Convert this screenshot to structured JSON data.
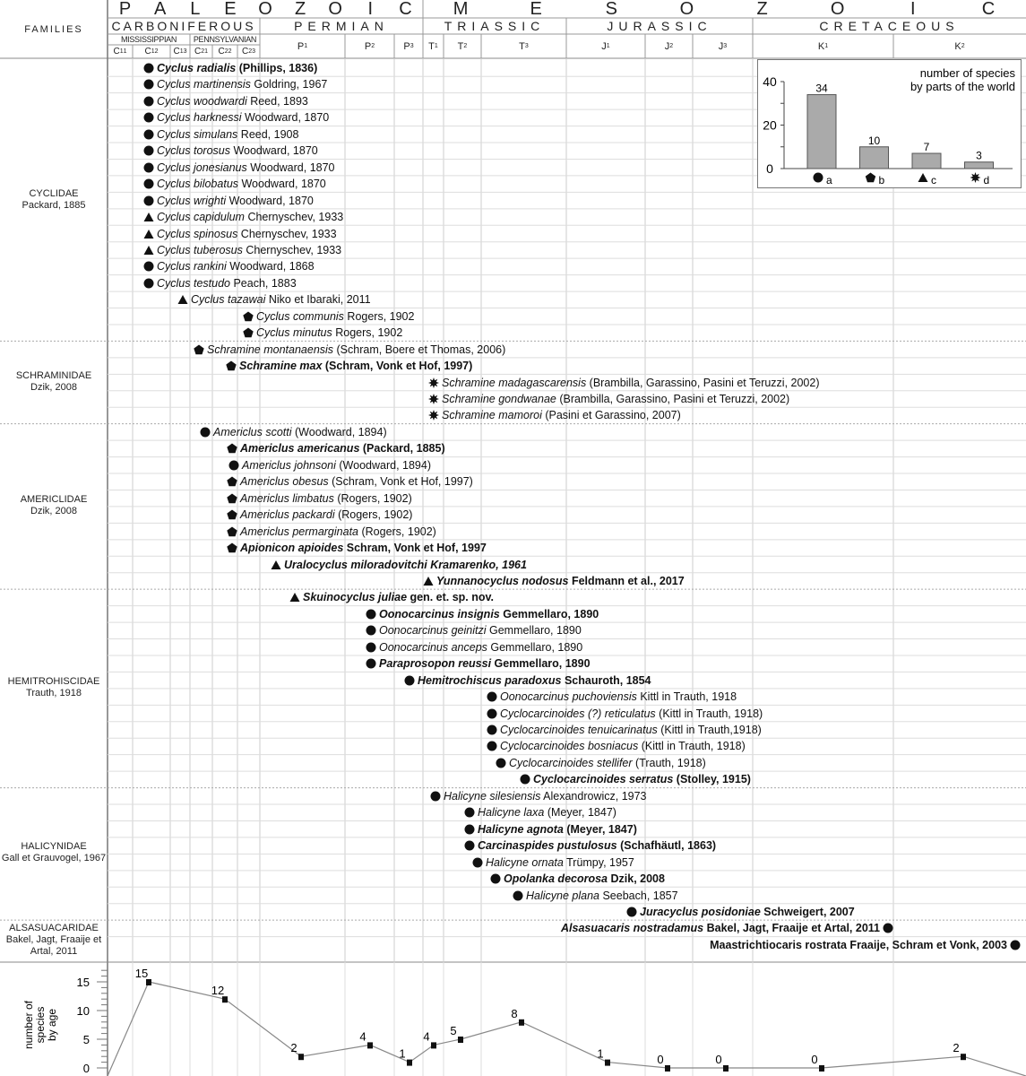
{
  "header": {
    "families_label": "FAMILIES",
    "eras": [
      {
        "label": "P A L E O Z O I C",
        "letters": [
          "P",
          "A",
          "L",
          "E",
          "O",
          "Z",
          "O",
          "I",
          "C"
        ]
      },
      {
        "label": "M E S O Z O I C",
        "letters": [
          "M",
          "E",
          "S",
          "O",
          "Z",
          "O",
          "I",
          "C"
        ]
      }
    ],
    "periods": [
      "CARBONIFEROUS",
      "PERMIAN",
      "TRIASSIC",
      "JURASSIC",
      "CRETACEOUS"
    ],
    "epochs": [
      "MISSISSIPPIAN",
      "PENNSYLVANIAN"
    ],
    "subdivisions": [
      {
        "base": "C",
        "sub": "1",
        "sup": "1"
      },
      {
        "base": "C",
        "sub": "1",
        "sup": "2"
      },
      {
        "base": "C",
        "sub": "1",
        "sup": "3"
      },
      {
        "base": "C",
        "sub": "2",
        "sup": "1"
      },
      {
        "base": "C",
        "sub": "2",
        "sup": "2"
      },
      {
        "base": "C",
        "sub": "2",
        "sup": "3"
      },
      {
        "base": "P",
        "sub": "1",
        "sup": ""
      },
      {
        "base": "P",
        "sub": "2",
        "sup": ""
      },
      {
        "base": "P",
        "sub": "3",
        "sup": ""
      },
      {
        "base": "T",
        "sub": "1",
        "sup": ""
      },
      {
        "base": "T",
        "sub": "2",
        "sup": ""
      },
      {
        "base": "T",
        "sub": "3",
        "sup": ""
      },
      {
        "base": "J",
        "sub": "1",
        "sup": ""
      },
      {
        "base": "J",
        "sub": "2",
        "sup": ""
      },
      {
        "base": "J",
        "sub": "3",
        "sup": ""
      },
      {
        "base": "K",
        "sub": "1",
        "sup": ""
      },
      {
        "base": "K",
        "sub": "2",
        "sup": ""
      }
    ]
  },
  "families": [
    {
      "name": "CYCLIDAE",
      "author": "Packard, 1885"
    },
    {
      "name": "SCHRAMINIDAE",
      "author": "Dzik, 2008"
    },
    {
      "name": "AMERICLIDAE",
      "author": "Dzik, 2008"
    },
    {
      "name": "HEMITROHISCIDAE",
      "author": "Trauth, 1918"
    },
    {
      "name": "HALICYNIDAE",
      "author": "Gall et Grauvogel, 1967"
    },
    {
      "name": "ALSASUACARIDAE",
      "author": "Bakel, Jagt, Fraaije et Artal, 2011"
    }
  ],
  "species": [
    {
      "name": "Cyclus radialis",
      "author": " (Phillips, 1836)",
      "symbol": "circle",
      "bold": true
    },
    {
      "name": "Cyclus martinensis",
      "author": " Goldring, 1967",
      "symbol": "circle",
      "bold": false
    },
    {
      "name": "Cyclus woodwardi",
      "author": " Reed, 1893",
      "symbol": "circle",
      "bold": false
    },
    {
      "name": "Cyclus harknessi",
      "author": " Woodward, 1870",
      "symbol": "circle",
      "bold": false
    },
    {
      "name": "Cyclus simulans",
      "author": " Reed, 1908",
      "symbol": "circle",
      "bold": false
    },
    {
      "name": "Cyclus torosus",
      "author": " Woodward, 1870",
      "symbol": "circle",
      "bold": false
    },
    {
      "name": "Cyclus jonesianus",
      "author": " Woodward, 1870",
      "symbol": "circle",
      "bold": false
    },
    {
      "name": "Cyclus bilobatus",
      "author": " Woodward, 1870",
      "symbol": "circle",
      "bold": false
    },
    {
      "name": "Cyclus wrighti",
      "author": " Woodward, 1870",
      "symbol": "circle",
      "bold": false
    },
    {
      "name": "Cyclus capidulum",
      "author": " Chernyschev, 1933",
      "symbol": "triangle",
      "bold": false
    },
    {
      "name": "Cyclus spinosus",
      "author": " Chernyschev, 1933",
      "symbol": "triangle",
      "bold": false
    },
    {
      "name": "Cyclus tuberosus",
      "author": " Chernyschev, 1933",
      "symbol": "triangle",
      "bold": false
    },
    {
      "name": "Cyclus rankini",
      "author": " Woodward, 1868",
      "symbol": "circle",
      "bold": false
    },
    {
      "name": "Cyclus testudo",
      "author": " Peach, 1883",
      "symbol": "circle",
      "bold": false
    },
    {
      "name": "Cyclus tazawai",
      "author": " Niko et Ibaraki, 2011",
      "symbol": "triangle",
      "bold": false
    },
    {
      "name": "Cyclus communis",
      "author": " Rogers, 1902",
      "symbol": "pentagon",
      "bold": false
    },
    {
      "name": "Cyclus minutus",
      "author": " Rogers, 1902",
      "symbol": "pentagon",
      "bold": false
    },
    {
      "name": "Schramine montanaensis",
      "author": " (Schram, Boere et Thomas, 2006)",
      "symbol": "pentagon",
      "bold": false
    },
    {
      "name": "Schramine max",
      "author": " (Schram, Vonk et Hof, 1997)",
      "symbol": "pentagon",
      "bold": true
    },
    {
      "name": "Schramine madagascarensis",
      "author": " (Brambilla, Garassino, Pasini et Teruzzi, 2002)",
      "symbol": "star",
      "bold": false
    },
    {
      "name": "Schramine gondwanae",
      "author": " (Brambilla, Garassino, Pasini et Teruzzi, 2002)",
      "symbol": "star",
      "bold": false
    },
    {
      "name": "Schramine mamoroi",
      "author": " (Pasini et Garassino, 2007)",
      "symbol": "star",
      "bold": false
    },
    {
      "name": "Americlus scotti",
      "author": " (Woodward, 1894)",
      "symbol": "circle",
      "bold": false
    },
    {
      "name": "Americlus americanus",
      "author": " (Packard, 1885)",
      "symbol": "pentagon",
      "bold": true
    },
    {
      "name": "Americlus johnsoni",
      "author": " (Woodward, 1894)",
      "symbol": "circle",
      "bold": false
    },
    {
      "name": "Americlus obesus",
      "author": " (Schram, Vonk et Hof, 1997)",
      "symbol": "pentagon",
      "bold": false
    },
    {
      "name": "Americlus limbatus",
      "author": " (Rogers, 1902)",
      "symbol": "pentagon",
      "bold": false
    },
    {
      "name": "Americlus packardi",
      "author": " (Rogers, 1902)",
      "symbol": "pentagon",
      "bold": false
    },
    {
      "name": "Americlus permarginata",
      "author": " (Rogers, 1902)",
      "symbol": "pentagon",
      "bold": false
    },
    {
      "name": "Apionicon apioides",
      "author": " Schram, Vonk et Hof, 1997",
      "symbol": "pentagon",
      "bold": true
    },
    {
      "name": "Uralocyclus miloradovitchi Kramarenko, 1961",
      "author": "",
      "symbol": "triangle",
      "bold": true
    },
    {
      "name": "Yunnanocyclus nodosus",
      "author": " Feldmann et al., 2017",
      "symbol": "triangle",
      "bold": true
    },
    {
      "name": "Skuinocyclus juliae",
      "author": " gen. et. sp. nov.",
      "symbol": "triangle",
      "bold": true
    },
    {
      "name": "Oonocarcinus insignis",
      "author": " Gemmellaro, 1890",
      "symbol": "circle",
      "bold": true
    },
    {
      "name": "Oonocarcinus geinitzi",
      "author": " Gemmellaro, 1890",
      "symbol": "circle",
      "bold": false
    },
    {
      "name": "Oonocarcinus anceps",
      "author": " Gemmellaro, 1890",
      "symbol": "circle",
      "bold": false
    },
    {
      "name": "Paraprosopon reussi",
      "author": " Gemmellaro, 1890",
      "symbol": "circle",
      "bold": true
    },
    {
      "name": "Hemitrochiscus paradoxus",
      "author": " Schauroth, 1854",
      "symbol": "circle",
      "bold": true
    },
    {
      "name": "Oonocarcinus puchoviensis",
      "author": " Kittl in Trauth, 1918",
      "symbol": "circle",
      "bold": false
    },
    {
      "name": "Cyclocarcinoides (?) reticulatus",
      "author": " (Kittl in Trauth, 1918)",
      "symbol": "circle",
      "bold": false
    },
    {
      "name": "Cyclocarcinoides tenuicarinatus",
      "author": " (Kittl in Trauth,1918)",
      "symbol": "circle",
      "bold": false
    },
    {
      "name": "Cyclocarcinoides bosniacus",
      "author": " (Kittl in Trauth, 1918)",
      "symbol": "circle",
      "bold": false
    },
    {
      "name": "Cyclocarcinoides stellifer",
      "author": " (Trauth, 1918)",
      "symbol": "circle",
      "bold": false
    },
    {
      "name": "Cyclocarcinoides serratus",
      "author": " (Stolley, 1915)",
      "symbol": "circle",
      "bold": true
    },
    {
      "name": "Halicyne silesiensis",
      "author": " Alexandrowicz, 1973",
      "symbol": "circle",
      "bold": false
    },
    {
      "name": "Halicyne laxa",
      "author": " (Meyer, 1847)",
      "symbol": "circle",
      "bold": false
    },
    {
      "name": "Halicyne agnota",
      "author": " (Meyer, 1847)",
      "symbol": "circle",
      "bold": true
    },
    {
      "name": "Carcinaspides pustulosus",
      "author": " (Schafhäutl, 1863)",
      "symbol": "circle",
      "bold": true
    },
    {
      "name": "Halicyne ornata",
      "author": " Trümpy, 1957",
      "symbol": "circle",
      "bold": false
    },
    {
      "name": "Opolanka decorosa",
      "author": " Dzik, 2008",
      "symbol": "circle",
      "bold": true
    },
    {
      "name": "Halicyne plana",
      "author": " Seebach, 1857",
      "symbol": "circle",
      "bold": false
    },
    {
      "name": "Juracyclus posidoniae",
      "author": " Schweigert, 2007",
      "symbol": "circle",
      "bold": true
    },
    {
      "name": "Alsasuacaris nostradamus",
      "author": " Bakel, Jagt, Fraaije et Artal, 2011",
      "symbol": "circle",
      "bold": true
    },
    {
      "name": "",
      "author": "Maastrichtiocaris rostrata Fraaije, Schram et Vonk, 2003",
      "symbol": "circle",
      "bold": true
    }
  ],
  "chart_data": [
    {
      "type": "bar",
      "title": "number of species by parts of the world",
      "categories": [
        "a",
        "b",
        "c",
        "d"
      ],
      "category_symbols": [
        "circle",
        "pentagon",
        "triangle",
        "star"
      ],
      "values": [
        34,
        10,
        7,
        3
      ],
      "ylim": [
        0,
        40
      ],
      "yticks": [
        "0",
        "20",
        "40"
      ]
    },
    {
      "type": "line",
      "ylabel": "number of species by age",
      "categories": [
        "C1²",
        "C2²",
        "P1",
        "P2",
        "P3",
        "T1",
        "T2",
        "T3",
        "J1",
        "J2",
        "J3",
        "K1",
        "K2"
      ],
      "values": [
        15,
        12,
        2,
        4,
        1,
        4,
        5,
        8,
        1,
        0,
        0,
        0,
        2
      ],
      "ylim": [
        0,
        17
      ],
      "yticks": [
        "0",
        "5",
        "10",
        "15"
      ]
    }
  ]
}
